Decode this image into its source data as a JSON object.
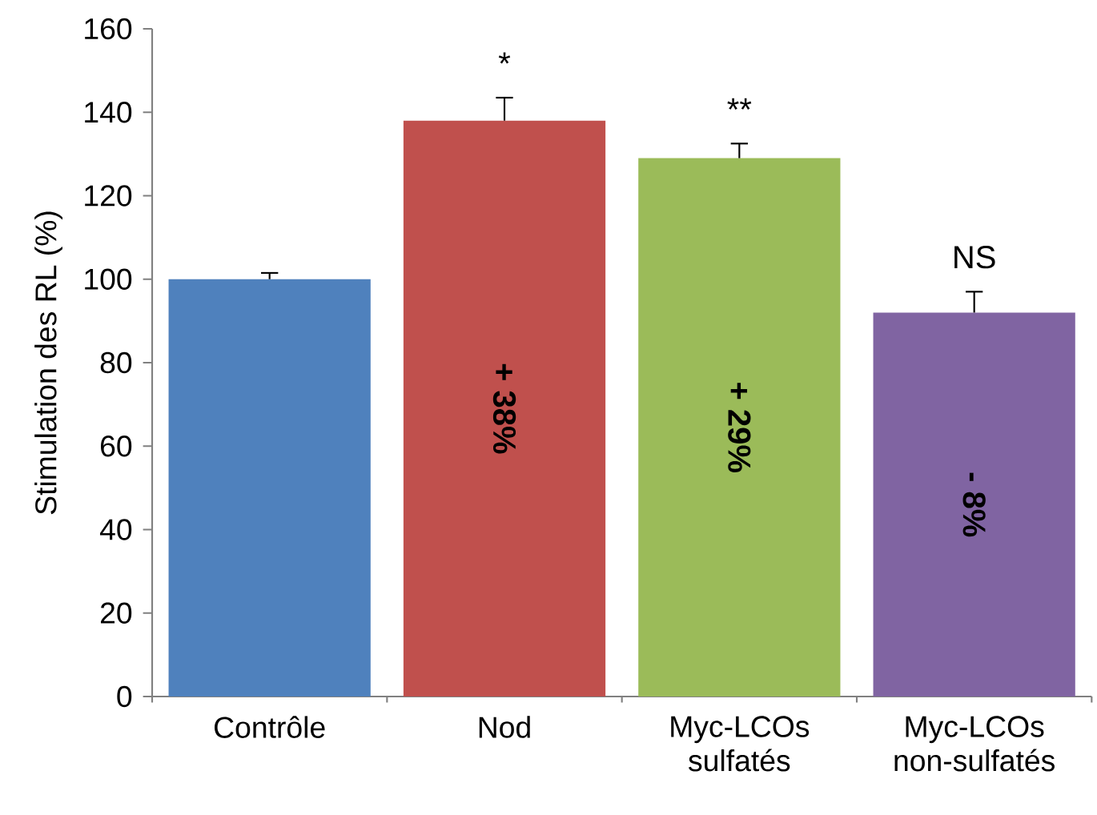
{
  "chart_data": {
    "type": "bar",
    "ylabel": "Stimulation des RL (%)",
    "categories": [
      "Contrôle",
      "Nod",
      "Myc-LCOs sulfatés",
      "Myc-LCOs non-sulfatés"
    ],
    "values": [
      100,
      138,
      129,
      92
    ],
    "colors": [
      "#4f81bd",
      "#c0504d",
      "#9bbb59",
      "#8064a2"
    ],
    "errors": [
      [
        100,
        101.5
      ],
      [
        138,
        143.5
      ],
      [
        129,
        132.5
      ],
      [
        92,
        97
      ]
    ],
    "ylim": [
      0,
      160
    ],
    "yticks": [
      0,
      20,
      40,
      60,
      80,
      100,
      120,
      140,
      160
    ],
    "annotations": [
      {
        "text": "*",
        "x": "Nod",
        "y": 143.5
      },
      {
        "text": "**",
        "x": "Myc-LCOs sulfatés",
        "y": 132.5
      },
      {
        "text": "NS",
        "x": "Myc-LCOs non-sulfatés",
        "y": 97
      },
      "+ 38%",
      "+ 29%",
      "- 8%"
    ],
    "grid": false
  }
}
